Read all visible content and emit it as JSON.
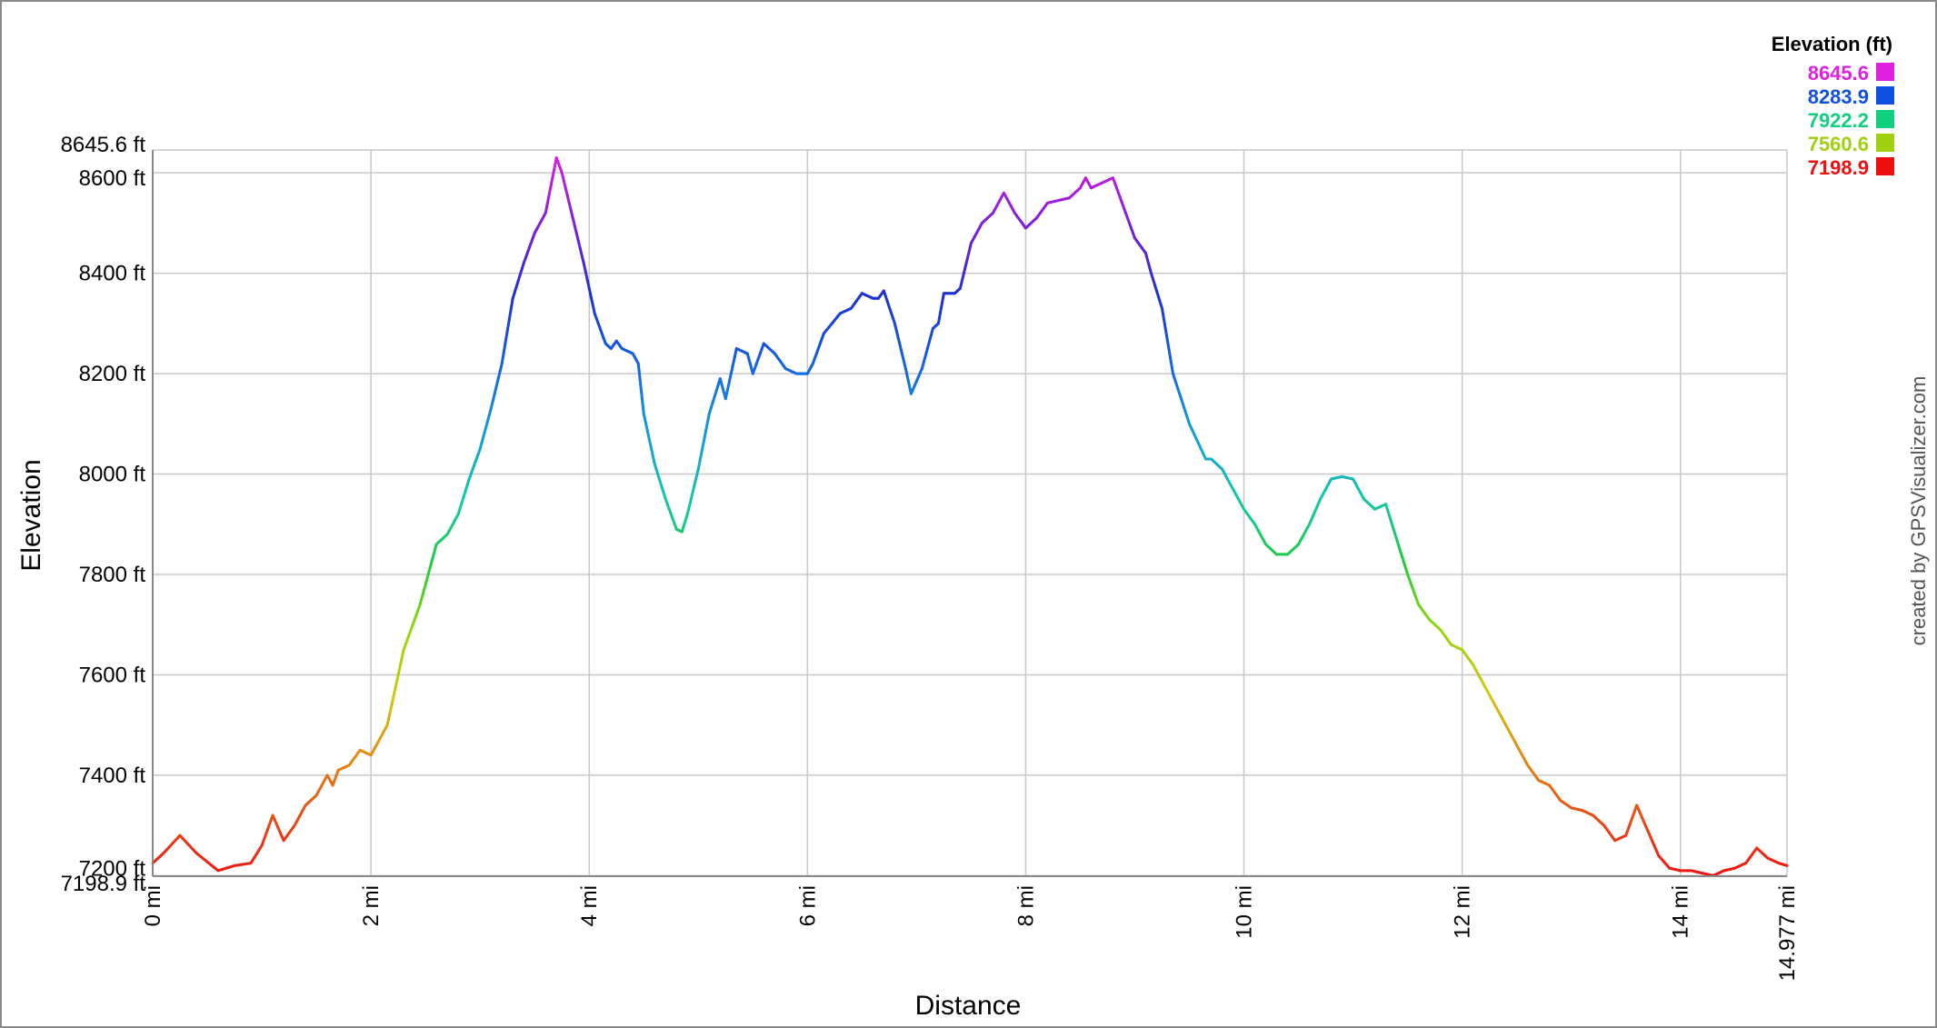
{
  "chart_data": {
    "type": "line",
    "xlabel": "Distance",
    "ylabel": "Elevation",
    "xlim": [
      0,
      14.977
    ],
    "ylim": [
      7198.9,
      8645.6
    ],
    "x_ticks": [
      0,
      2,
      4,
      6,
      8,
      10,
      12,
      14,
      14.977
    ],
    "x_tick_labels": [
      "0 mi",
      "2 mi",
      "4 mi",
      "6 mi",
      "8 mi",
      "10 mi",
      "12 mi",
      "14 mi",
      "14.977 mi"
    ],
    "y_ticks": [
      7198.9,
      7200,
      7400,
      7600,
      7800,
      8000,
      8200,
      8400,
      8600,
      8645.6
    ],
    "y_tick_labels": [
      "7198.9 ft",
      "7200 ft",
      "7400 ft",
      "7600 ft",
      "7800 ft",
      "8000 ft",
      "8200 ft",
      "8400 ft",
      "8600 ft",
      "8645.6 ft"
    ],
    "grid": true,
    "legend": {
      "title": "Elevation (ft)",
      "placement": "top-right",
      "entries": [
        {
          "label": "8645.6",
          "color": "#e020e0"
        },
        {
          "label": "8283.9",
          "color": "#1050e0"
        },
        {
          "label": "7922.2",
          "color": "#10d080"
        },
        {
          "label": "7560.6",
          "color": "#a0d010"
        },
        {
          "label": "7198.9",
          "color": "#ee1010"
        }
      ]
    },
    "credit": "created by GPSVisualizer.com",
    "series": [
      {
        "x": [
          0,
          0.1,
          0.25,
          0.4,
          0.6,
          0.75,
          0.9,
          1.0,
          1.1,
          1.2,
          1.3,
          1.4,
          1.5,
          1.6,
          1.65,
          1.7,
          1.8,
          1.9,
          2.0,
          2.05,
          2.15,
          2.3,
          2.45,
          2.6,
          2.7,
          2.8,
          2.9,
          3.0,
          3.1,
          3.2,
          3.3,
          3.4,
          3.5,
          3.6,
          3.7,
          3.75,
          3.85,
          3.95,
          4.05,
          4.15,
          4.2,
          4.25,
          4.3,
          4.4,
          4.45,
          4.5,
          4.6,
          4.7,
          4.8,
          4.85,
          4.9,
          5.0,
          5.1,
          5.2,
          5.25,
          5.35,
          5.45,
          5.5,
          5.6,
          5.7,
          5.8,
          5.9,
          6.0,
          6.05,
          6.15,
          6.3,
          6.4,
          6.5,
          6.6,
          6.65,
          6.7,
          6.8,
          6.9,
          6.95,
          7.05,
          7.15,
          7.2,
          7.25,
          7.35,
          7.4,
          7.5,
          7.6,
          7.7,
          7.8,
          7.9,
          8.0,
          8.1,
          8.2,
          8.3,
          8.4,
          8.5,
          8.55,
          8.6,
          8.7,
          8.8,
          8.9,
          9.0,
          9.1,
          9.15,
          9.25,
          9.35,
          9.5,
          9.65,
          9.7,
          9.8,
          9.9,
          10.0,
          10.1,
          10.2,
          10.3,
          10.4,
          10.5,
          10.6,
          10.7,
          10.8,
          10.9,
          11.0,
          11.1,
          11.2,
          11.3,
          11.4,
          11.5,
          11.6,
          11.7,
          11.8,
          11.9,
          12.0,
          12.1,
          12.2,
          12.3,
          12.4,
          12.5,
          12.6,
          12.7,
          12.8,
          12.9,
          13.0,
          13.1,
          13.2,
          13.3,
          13.4,
          13.5,
          13.6,
          13.7,
          13.8,
          13.9,
          14.0,
          14.1,
          14.2,
          14.3,
          14.4,
          14.5,
          14.6,
          14.7,
          14.8,
          14.9,
          14.977
        ],
        "y": [
          7225,
          7245,
          7280,
          7245,
          7210,
          7220,
          7225,
          7260,
          7320,
          7270,
          7300,
          7340,
          7360,
          7400,
          7380,
          7410,
          7420,
          7450,
          7440,
          7460,
          7500,
          7650,
          7740,
          7860,
          7880,
          7920,
          7990,
          8050,
          8130,
          8220,
          8350,
          8420,
          8480,
          8520,
          8630,
          8600,
          8510,
          8420,
          8320,
          8260,
          8250,
          8265,
          8250,
          8240,
          8220,
          8120,
          8020,
          7950,
          7890,
          7885,
          7920,
          8010,
          8120,
          8190,
          8150,
          8250,
          8240,
          8200,
          8260,
          8240,
          8210,
          8200,
          8200,
          8220,
          8280,
          8320,
          8330,
          8360,
          8350,
          8350,
          8365,
          8300,
          8210,
          8160,
          8210,
          8290,
          8300,
          8360,
          8360,
          8370,
          8460,
          8500,
          8520,
          8560,
          8520,
          8490,
          8510,
          8540,
          8545,
          8550,
          8570,
          8590,
          8570,
          8580,
          8590,
          8530,
          8470,
          8440,
          8400,
          8330,
          8200,
          8100,
          8030,
          8030,
          8010,
          7970,
          7930,
          7900,
          7860,
          7840,
          7840,
          7860,
          7900,
          7950,
          7990,
          7995,
          7990,
          7950,
          7930,
          7940,
          7870,
          7800,
          7740,
          7710,
          7690,
          7660,
          7650,
          7620,
          7580,
          7540,
          7500,
          7460,
          7420,
          7390,
          7380,
          7350,
          7335,
          7330,
          7320,
          7300,
          7270,
          7280,
          7340,
          7290,
          7240,
          7215,
          7210,
          7210,
          7205,
          7200,
          7210,
          7215,
          7225,
          7255,
          7235,
          7225,
          7220
        ]
      }
    ]
  }
}
